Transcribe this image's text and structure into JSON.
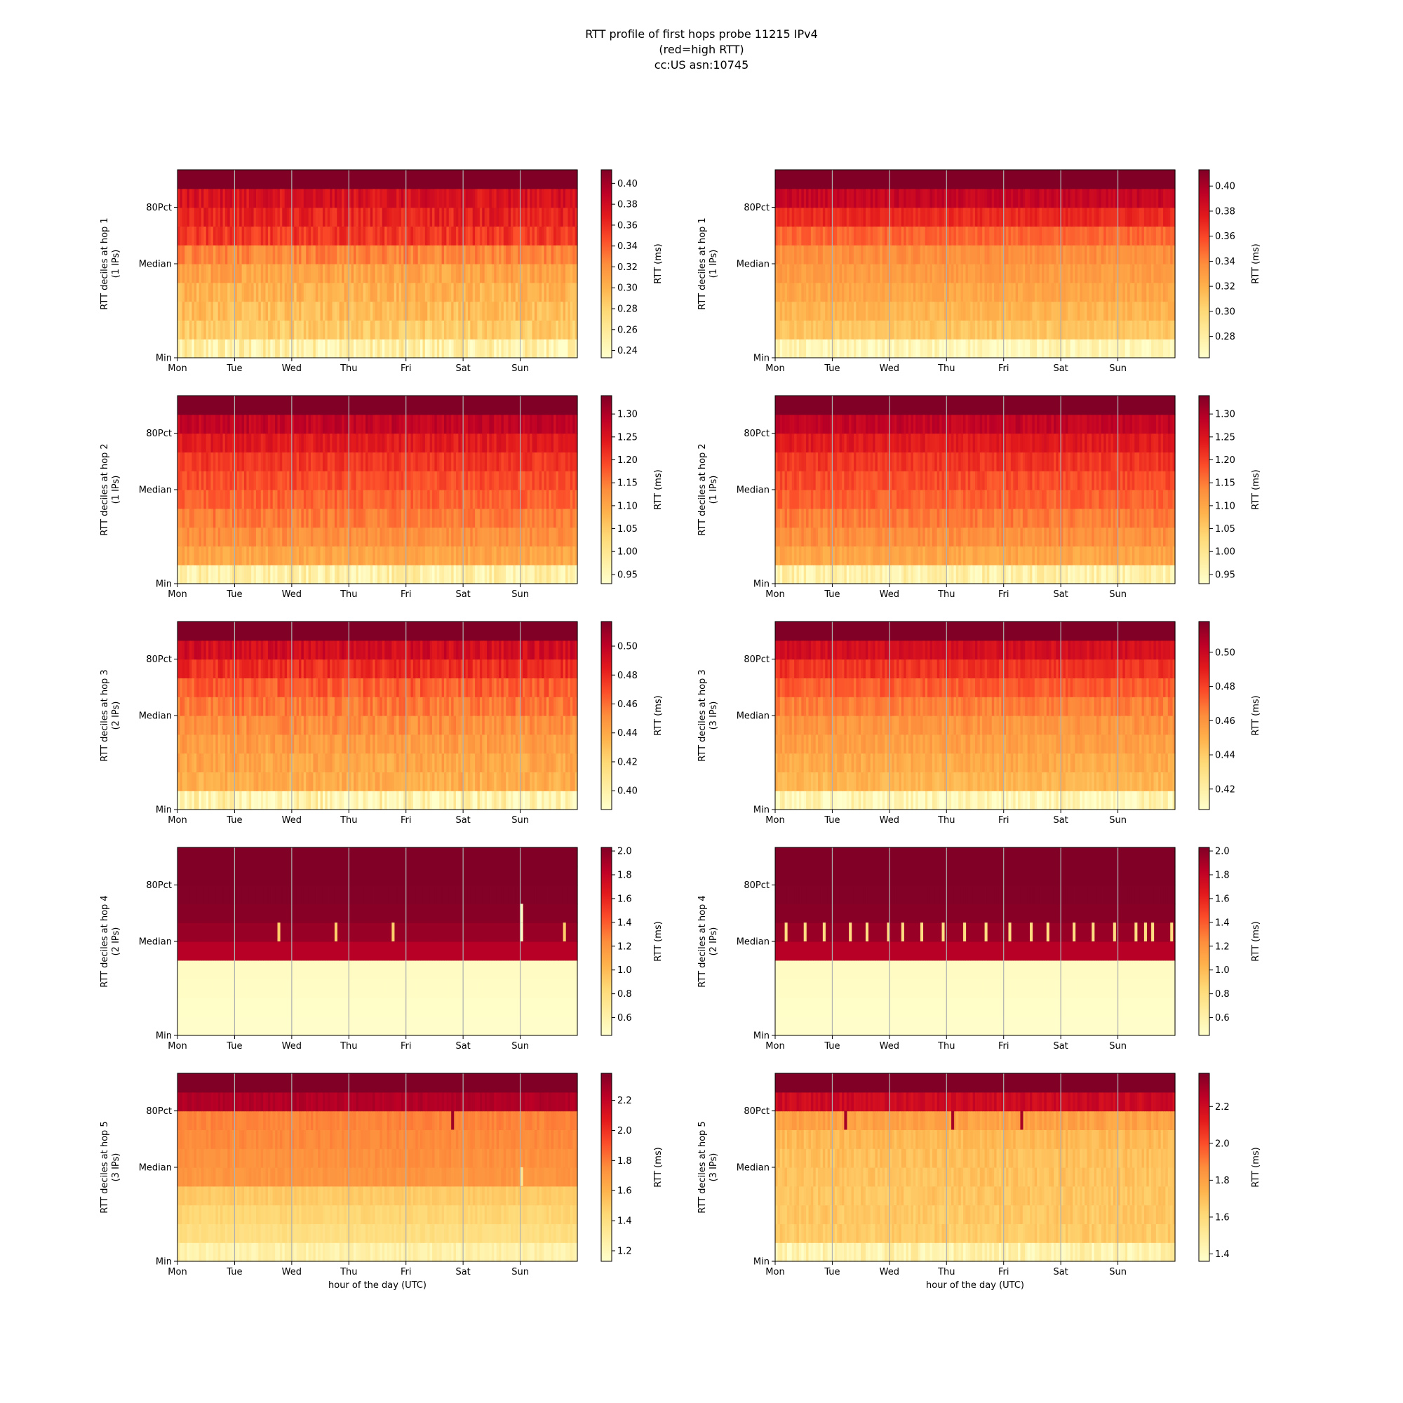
{
  "figure": {
    "title_lines": [
      "RTT profile of first hops probe 11215 IPv4",
      "(red=high RTT)",
      "cc:US asn:10745"
    ],
    "colormap": "YlOrRd",
    "colormap_stops": [
      "#ffffcc",
      "#ffeda0",
      "#fed976",
      "#feb24c",
      "#fd8d3c",
      "#fc4e2a",
      "#e31a1c",
      "#bd0026",
      "#800026"
    ],
    "grid_color": "#b0b0b0"
  },
  "chart_data": [
    {
      "type": "heatmap",
      "column": "left",
      "row": 1,
      "ylabel_lines": [
        "RTT deciles at hop 1",
        "(1 IPs)"
      ],
      "xlabel": "",
      "x_tick_labels": [
        "Mon",
        "Tue",
        "Wed",
        "Thu",
        "Fri",
        "Sat",
        "Sun"
      ],
      "y_tick_labels": [
        "Min",
        "Median",
        "80Pct"
      ],
      "colorbar_label": "RTT (ms)",
      "colorbar_ticks": [
        0.24,
        0.26,
        0.28,
        0.3,
        0.32,
        0.34,
        0.36,
        0.38,
        0.4
      ],
      "colorbar_tick_labels": [
        "0.24",
        "0.26",
        "0.28",
        "0.30",
        "0.32",
        "0.34",
        "0.36",
        "0.38",
        "0.40"
      ],
      "vmin": 0.233,
      "vmax": 0.413,
      "deciles_ms": [
        0.25,
        0.285,
        0.295,
        0.3,
        0.31,
        0.325,
        0.355,
        0.365,
        0.375,
        0.413
      ],
      "noise": 0.012,
      "spikes": []
    },
    {
      "type": "heatmap",
      "column": "right",
      "row": 1,
      "ylabel_lines": [
        "RTT deciles at hop 1",
        "(1 IPs)"
      ],
      "xlabel": "",
      "x_tick_labels": [
        "Mon",
        "Tue",
        "Wed",
        "Thu",
        "Fri",
        "Sat",
        "Sun"
      ],
      "y_tick_labels": [
        "Min",
        "Median",
        "80Pct"
      ],
      "colorbar_label": "RTT (ms)",
      "colorbar_ticks": [
        0.28,
        0.3,
        0.32,
        0.34,
        0.36,
        0.38,
        0.4
      ],
      "colorbar_tick_labels": [
        "0.28",
        "0.30",
        "0.32",
        "0.34",
        "0.36",
        "0.38",
        "0.40"
      ],
      "vmin": 0.263,
      "vmax": 0.413,
      "deciles_ms": [
        0.272,
        0.31,
        0.318,
        0.325,
        0.33,
        0.336,
        0.35,
        0.37,
        0.39,
        0.413
      ],
      "noise": 0.006,
      "spikes": []
    },
    {
      "type": "heatmap",
      "column": "left",
      "row": 2,
      "ylabel_lines": [
        "RTT deciles at hop 2",
        "(1 IPs)"
      ],
      "xlabel": "",
      "x_tick_labels": [
        "Mon",
        "Tue",
        "Wed",
        "Thu",
        "Fri",
        "Sat",
        "Sun"
      ],
      "y_tick_labels": [
        "Min",
        "Median",
        "80Pct"
      ],
      "colorbar_label": "RTT (ms)",
      "colorbar_ticks": [
        0.95,
        1.0,
        1.05,
        1.1,
        1.15,
        1.2,
        1.25,
        1.3
      ],
      "colorbar_tick_labels": [
        "0.95",
        "1.00",
        "1.05",
        "1.10",
        "1.15",
        "1.20",
        "1.25",
        "1.30"
      ],
      "vmin": 0.93,
      "vmax": 1.34,
      "deciles_ms": [
        0.97,
        1.1,
        1.13,
        1.15,
        1.17,
        1.19,
        1.21,
        1.24,
        1.28,
        1.34
      ],
      "noise": 0.02,
      "spikes": []
    },
    {
      "type": "heatmap",
      "column": "right",
      "row": 2,
      "ylabel_lines": [
        "RTT deciles at hop 2",
        "(1 IPs)"
      ],
      "xlabel": "",
      "x_tick_labels": [
        "Mon",
        "Tue",
        "Wed",
        "Thu",
        "Fri",
        "Sat",
        "Sun"
      ],
      "y_tick_labels": [
        "Min",
        "Median",
        "80Pct"
      ],
      "colorbar_label": "RTT (ms)",
      "colorbar_ticks": [
        0.95,
        1.0,
        1.05,
        1.1,
        1.15,
        1.2,
        1.25,
        1.3
      ],
      "colorbar_tick_labels": [
        "0.95",
        "1.00",
        "1.05",
        "1.10",
        "1.15",
        "1.20",
        "1.25",
        "1.30"
      ],
      "vmin": 0.93,
      "vmax": 1.34,
      "deciles_ms": [
        0.97,
        1.1,
        1.13,
        1.15,
        1.17,
        1.19,
        1.21,
        1.24,
        1.28,
        1.34
      ],
      "noise": 0.018,
      "spikes": []
    },
    {
      "type": "heatmap",
      "column": "left",
      "row": 3,
      "ylabel_lines": [
        "RTT deciles at hop 3",
        "(2 IPs)"
      ],
      "xlabel": "",
      "x_tick_labels": [
        "Mon",
        "Tue",
        "Wed",
        "Thu",
        "Fri",
        "Sat",
        "Sun"
      ],
      "y_tick_labels": [
        "Min",
        "Median",
        "80Pct"
      ],
      "colorbar_label": "RTT (ms)",
      "colorbar_ticks": [
        0.4,
        0.42,
        0.44,
        0.46,
        0.48,
        0.5
      ],
      "colorbar_tick_labels": [
        "0.40",
        "0.42",
        "0.44",
        "0.46",
        "0.48",
        "0.50"
      ],
      "vmin": 0.387,
      "vmax": 0.517,
      "deciles_ms": [
        0.398,
        0.438,
        0.441,
        0.445,
        0.45,
        0.457,
        0.465,
        0.478,
        0.492,
        0.517
      ],
      "noise": 0.008,
      "spikes": []
    },
    {
      "type": "heatmap",
      "column": "right",
      "row": 3,
      "ylabel_lines": [
        "RTT deciles at hop 3",
        "(3 IPs)"
      ],
      "xlabel": "",
      "x_tick_labels": [
        "Mon",
        "Tue",
        "Wed",
        "Thu",
        "Fri",
        "Sat",
        "Sun"
      ],
      "y_tick_labels": [
        "Min",
        "Median",
        "80Pct"
      ],
      "colorbar_label": "RTT (ms)",
      "colorbar_ticks": [
        0.42,
        0.44,
        0.46,
        0.48,
        0.5
      ],
      "colorbar_tick_labels": [
        "0.42",
        "0.44",
        "0.46",
        "0.48",
        "0.50"
      ],
      "vmin": 0.408,
      "vmax": 0.518,
      "deciles_ms": [
        0.415,
        0.448,
        0.452,
        0.456,
        0.46,
        0.466,
        0.474,
        0.484,
        0.496,
        0.518
      ],
      "noise": 0.005,
      "spikes": []
    },
    {
      "type": "heatmap",
      "column": "left",
      "row": 4,
      "ylabel_lines": [
        "RTT deciles at hop 4",
        "(2 IPs)"
      ],
      "xlabel": "",
      "x_tick_labels": [
        "Mon",
        "Tue",
        "Wed",
        "Thu",
        "Fri",
        "Sat",
        "Sun"
      ],
      "y_tick_labels": [
        "Min",
        "Median",
        "80Pct"
      ],
      "colorbar_label": "RTT (ms)",
      "colorbar_ticks": [
        0.6,
        0.8,
        1.0,
        1.2,
        1.4,
        1.6,
        1.8,
        2.0
      ],
      "colorbar_tick_labels": [
        "0.6",
        "0.8",
        "1.0",
        "1.2",
        "1.4",
        "1.6",
        "1.8",
        "2.0"
      ],
      "vmin": 0.45,
      "vmax": 2.03,
      "deciles_ms": [
        0.46,
        0.47,
        0.48,
        0.49,
        1.85,
        1.95,
        2.0,
        2.02,
        2.03,
        2.03
      ],
      "noise": 0.0,
      "spikes": [
        {
          "decile": 5,
          "day": 1.74,
          "ms": 0.9
        },
        {
          "decile": 5,
          "day": 2.74,
          "ms": 0.9
        },
        {
          "decile": 5,
          "day": 3.74,
          "ms": 0.9
        },
        {
          "decile": 5,
          "day": 5.98,
          "ms": 0.5
        },
        {
          "decile": 6,
          "day": 5.98,
          "ms": 0.5
        },
        {
          "decile": 5,
          "day": 6.74,
          "ms": 0.9
        }
      ]
    },
    {
      "type": "heatmap",
      "column": "right",
      "row": 4,
      "ylabel_lines": [
        "RTT deciles at hop 4",
        "(2 IPs)"
      ],
      "xlabel": "",
      "x_tick_labels": [
        "Mon",
        "Tue",
        "Wed",
        "Thu",
        "Fri",
        "Sat",
        "Sun"
      ],
      "y_tick_labels": [
        "Min",
        "Median",
        "80Pct"
      ],
      "colorbar_label": "RTT (ms)",
      "colorbar_ticks": [
        0.6,
        0.8,
        1.0,
        1.2,
        1.4,
        1.6,
        1.8,
        2.0
      ],
      "colorbar_tick_labels": [
        "0.6",
        "0.8",
        "1.0",
        "1.2",
        "1.4",
        "1.6",
        "1.8",
        "2.0"
      ],
      "vmin": 0.45,
      "vmax": 2.03,
      "deciles_ms": [
        0.46,
        0.47,
        0.48,
        0.49,
        1.85,
        1.95,
        2.0,
        2.02,
        2.03,
        2.03
      ],
      "noise": 0.0,
      "spikes": [
        {
          "decile": 5,
          "day": 0.18,
          "ms": 0.8
        },
        {
          "decile": 5,
          "day": 0.5,
          "ms": 0.8
        },
        {
          "decile": 5,
          "day": 0.85,
          "ms": 0.8
        },
        {
          "decile": 5,
          "day": 1.3,
          "ms": 0.8
        },
        {
          "decile": 5,
          "day": 1.6,
          "ms": 0.8
        },
        {
          "decile": 5,
          "day": 1.95,
          "ms": 0.8
        },
        {
          "decile": 5,
          "day": 2.2,
          "ms": 0.8
        },
        {
          "decile": 5,
          "day": 2.55,
          "ms": 0.8
        },
        {
          "decile": 5,
          "day": 2.9,
          "ms": 0.8
        },
        {
          "decile": 5,
          "day": 3.3,
          "ms": 0.8
        },
        {
          "decile": 5,
          "day": 3.65,
          "ms": 0.8
        },
        {
          "decile": 5,
          "day": 4.1,
          "ms": 0.8
        },
        {
          "decile": 5,
          "day": 4.45,
          "ms": 0.8
        },
        {
          "decile": 5,
          "day": 4.75,
          "ms": 0.8
        },
        {
          "decile": 5,
          "day": 5.2,
          "ms": 0.8
        },
        {
          "decile": 5,
          "day": 5.55,
          "ms": 0.8
        },
        {
          "decile": 5,
          "day": 5.9,
          "ms": 0.8
        },
        {
          "decile": 5,
          "day": 6.3,
          "ms": 0.8
        },
        {
          "decile": 5,
          "day": 6.45,
          "ms": 0.8
        },
        {
          "decile": 5,
          "day": 6.6,
          "ms": 0.8
        },
        {
          "decile": 5,
          "day": 6.9,
          "ms": 0.8
        }
      ]
    },
    {
      "type": "heatmap",
      "column": "left",
      "row": 5,
      "ylabel_lines": [
        "RTT deciles at hop 5",
        "(3 IPs)"
      ],
      "xlabel": "hour of the day (UTC)",
      "x_tick_labels": [
        "Mon",
        "Tue",
        "Wed",
        "Thu",
        "Fri",
        "Sat",
        "Sun"
      ],
      "y_tick_labels": [
        "Min",
        "Median",
        "80Pct"
      ],
      "colorbar_label": "RTT (ms)",
      "colorbar_ticks": [
        1.2,
        1.4,
        1.6,
        1.8,
        2.0,
        2.2
      ],
      "colorbar_tick_labels": [
        "1.2",
        "1.4",
        "1.6",
        "1.8",
        "2.0",
        "2.2"
      ],
      "vmin": 1.13,
      "vmax": 2.38,
      "deciles_ms": [
        1.25,
        1.4,
        1.45,
        1.5,
        1.72,
        1.74,
        1.76,
        1.78,
        2.25,
        2.38
      ],
      "noise": 0.03,
      "spikes": [
        {
          "decile": 4,
          "day": 5.98,
          "ms": 1.35
        },
        {
          "decile": 7,
          "day": 4.8,
          "ms": 2.3
        }
      ]
    },
    {
      "type": "heatmap",
      "column": "right",
      "row": 5,
      "ylabel_lines": [
        "RTT deciles at hop 5",
        "(3 IPs)"
      ],
      "xlabel": "hour of the day (UTC)",
      "x_tick_labels": [
        "Mon",
        "Tue",
        "Wed",
        "Thu",
        "Fri",
        "Sat",
        "Sun"
      ],
      "y_tick_labels": [
        "Min",
        "Median",
        "80Pct"
      ],
      "colorbar_label": "RTT (ms)",
      "colorbar_ticks": [
        1.4,
        1.6,
        1.8,
        2.0,
        2.2
      ],
      "colorbar_tick_labels": [
        "1.4",
        "1.6",
        "1.8",
        "2.0",
        "2.2"
      ],
      "vmin": 1.36,
      "vmax": 2.38,
      "deciles_ms": [
        1.45,
        1.66,
        1.67,
        1.68,
        1.69,
        1.7,
        1.72,
        1.8,
        2.2,
        2.38
      ],
      "noise": 0.04,
      "spikes": [
        {
          "decile": 7,
          "day": 1.2,
          "ms": 2.3
        },
        {
          "decile": 7,
          "day": 3.1,
          "ms": 2.3
        },
        {
          "decile": 7,
          "day": 4.3,
          "ms": 2.3
        }
      ]
    }
  ]
}
